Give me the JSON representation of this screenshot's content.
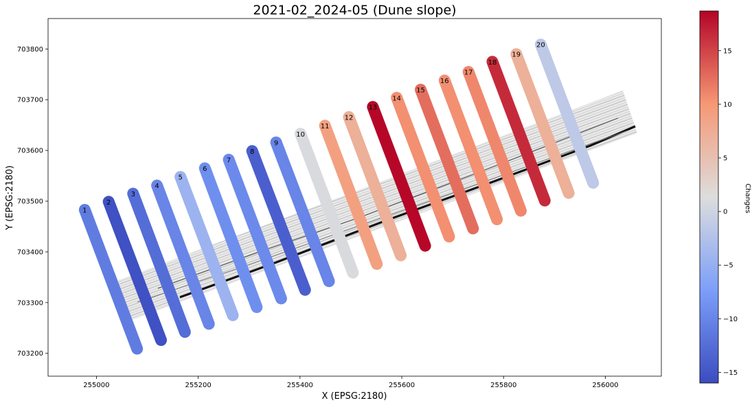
{
  "chart_data": {
    "type": "line",
    "title": "2021-02_2024-05 (Dune slope)",
    "xlabel": "X (EPSG:2180)",
    "ylabel": "Y (EPSG:2180)",
    "xlim": [
      254905,
      256110
    ],
    "ylim": [
      703155,
      703860
    ],
    "xticks": [
      255000,
      255200,
      255400,
      255600,
      255800,
      256000
    ],
    "yticks": [
      703200,
      703300,
      703400,
      703500,
      703600,
      703700,
      703800
    ],
    "grid": false,
    "colorbar": {
      "label": "Changes",
      "range": [
        -16.0,
        18.7
      ],
      "ticks": [
        -15,
        -10,
        -5,
        0,
        5,
        10,
        15
      ],
      "colormap": "coolwarm"
    },
    "transects": [
      {
        "id": "1",
        "x": [
          254977,
          255080
        ],
        "y": [
          703483,
          703209
        ],
        "change": -11.0
      },
      {
        "id": "2",
        "x": [
          255024,
          255127
        ],
        "y": [
          703499,
          703226
        ],
        "change": -15.5
      },
      {
        "id": "3",
        "x": [
          255072,
          255174
        ],
        "y": [
          703515,
          703242
        ],
        "change": -12.5
      },
      {
        "id": "4",
        "x": [
          255119,
          255221
        ],
        "y": [
          703531,
          703258
        ],
        "change": -10.0
      },
      {
        "id": "5",
        "x": [
          255165,
          255268
        ],
        "y": [
          703548,
          703275
        ],
        "change": -4.5
      },
      {
        "id": "6",
        "x": [
          255213,
          255315
        ],
        "y": [
          703565,
          703291
        ],
        "change": -9.0
      },
      {
        "id": "7",
        "x": [
          255260,
          255363
        ],
        "y": [
          703582,
          703308
        ],
        "change": -9.5
      },
      {
        "id": "8",
        "x": [
          255306,
          255410
        ],
        "y": [
          703599,
          703325
        ],
        "change": -14.0
      },
      {
        "id": "9",
        "x": [
          255353,
          255457
        ],
        "y": [
          703616,
          703342
        ],
        "change": -10.0
      },
      {
        "id": "10",
        "x": [
          255401,
          255504
        ],
        "y": [
          703633,
          703359
        ],
        "change": 1.0
      },
      {
        "id": "11",
        "x": [
          255449,
          255551
        ],
        "y": [
          703649,
          703376
        ],
        "change": 9.0
      },
      {
        "id": "12",
        "x": [
          255496,
          255598
        ],
        "y": [
          703666,
          703393
        ],
        "change": 7.0
      },
      {
        "id": "13",
        "x": [
          255543,
          255646
        ],
        "y": [
          703686,
          703412
        ],
        "change": 18.5
      },
      {
        "id": "14",
        "x": [
          255590,
          255693
        ],
        "y": [
          703704,
          703430
        ],
        "change": 10.5
      },
      {
        "id": "15",
        "x": [
          255637,
          255740
        ],
        "y": [
          703720,
          703446
        ],
        "change": 12.5
      },
      {
        "id": "16",
        "x": [
          255684,
          255787
        ],
        "y": [
          703738,
          703464
        ],
        "change": 10.5
      },
      {
        "id": "17",
        "x": [
          255731,
          255834
        ],
        "y": [
          703755,
          703481
        ],
        "change": 11.0
      },
      {
        "id": "18",
        "x": [
          255778,
          255881
        ],
        "y": [
          703775,
          703501
        ],
        "change": 16.5
      },
      {
        "id": "19",
        "x": [
          255825,
          255928
        ],
        "y": [
          703790,
          703516
        ],
        "change": 7.0
      },
      {
        "id": "20",
        "x": [
          255873,
          255976
        ],
        "y": [
          703809,
          703536
        ],
        "change": -1.5
      }
    ]
  }
}
